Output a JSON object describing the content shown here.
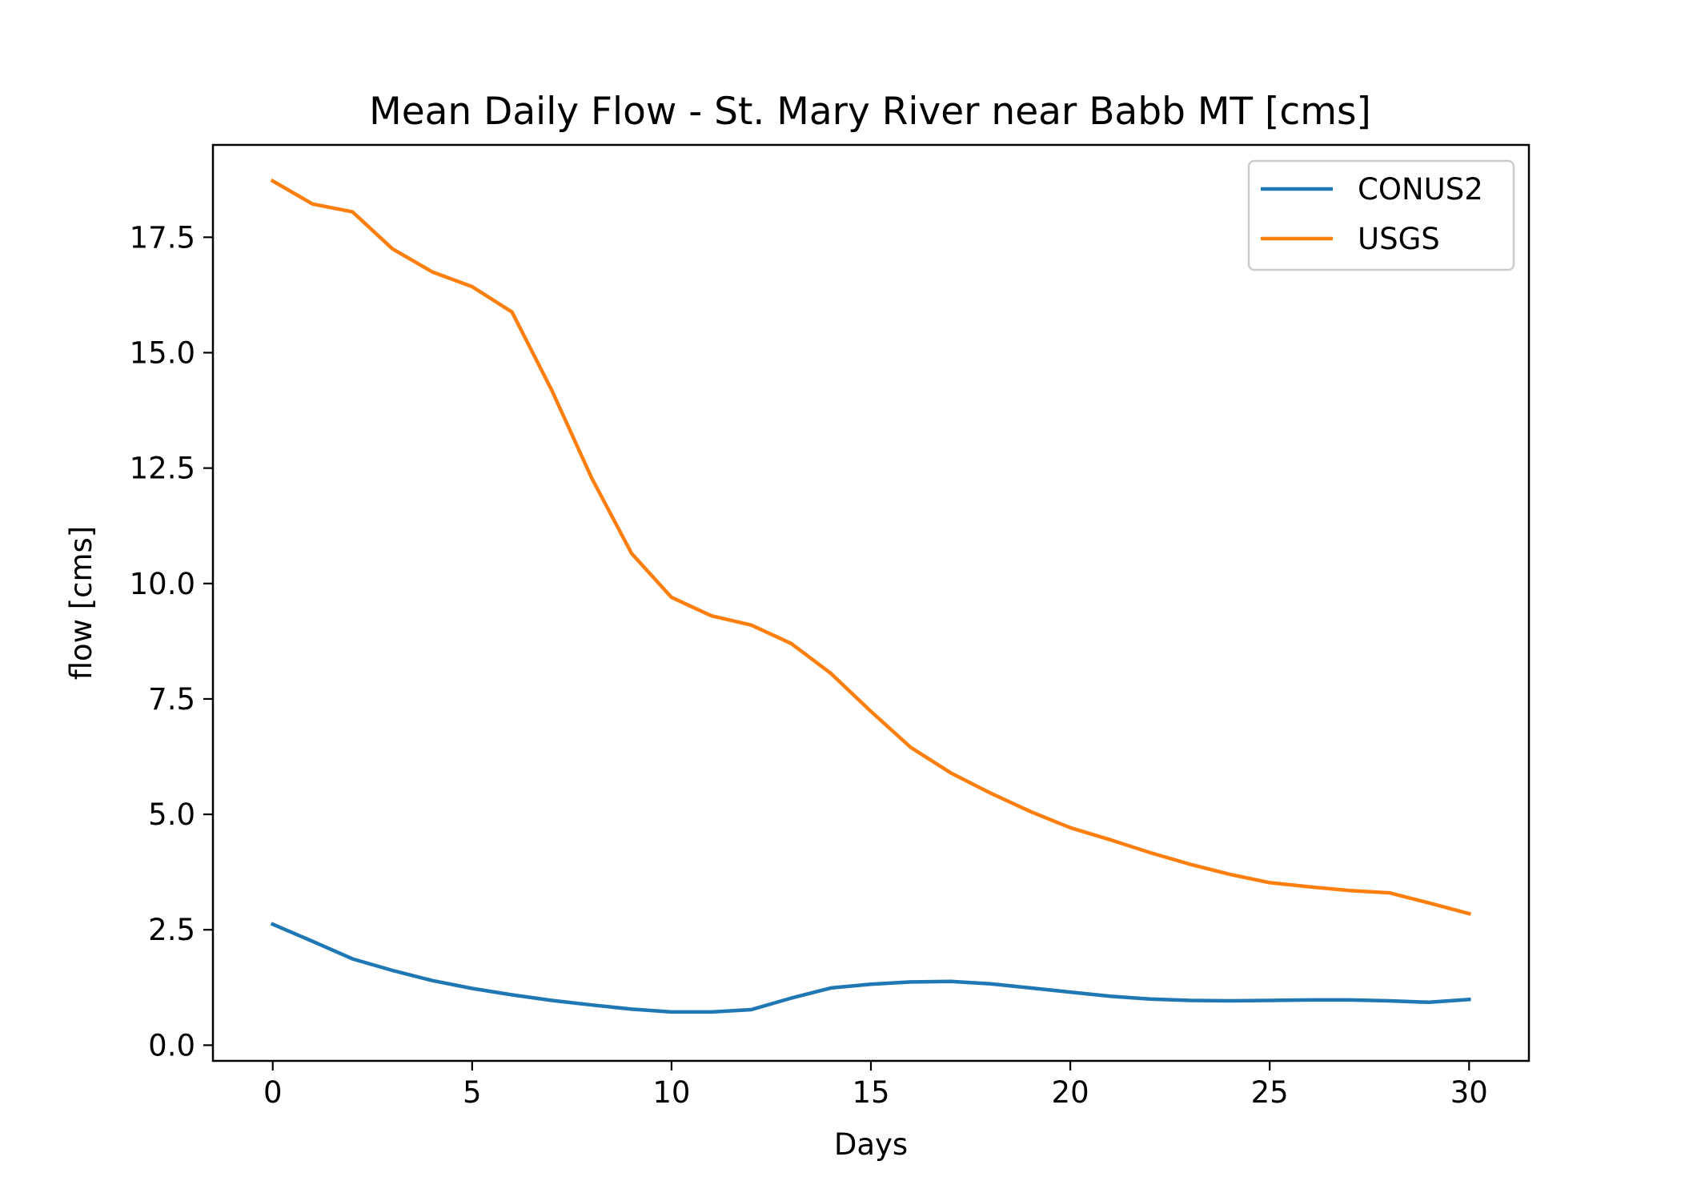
{
  "chart_data": {
    "type": "line",
    "title": "Mean Daily Flow - St. Mary River near Babb MT [cms]",
    "xlabel": "Days",
    "ylabel": "flow [cms]",
    "xlim": [
      -1.5,
      31.5
    ],
    "ylim": [
      -0.34,
      19.5
    ],
    "xticks": [
      0,
      5,
      10,
      15,
      20,
      25,
      30
    ],
    "yticks": [
      0.0,
      2.5,
      5.0,
      7.5,
      10.0,
      12.5,
      15.0,
      17.5
    ],
    "xtick_labels": [
      "0",
      "5",
      "10",
      "15",
      "20",
      "25",
      "30"
    ],
    "ytick_labels": [
      "0.0",
      "2.5",
      "5.0",
      "7.5",
      "10.0",
      "12.5",
      "15.0",
      "17.5"
    ],
    "grid": false,
    "legend_position": "top-right",
    "x": [
      0,
      1,
      2,
      3,
      4,
      5,
      6,
      7,
      8,
      9,
      10,
      11,
      12,
      13,
      14,
      15,
      16,
      17,
      18,
      19,
      20,
      21,
      22,
      23,
      24,
      25,
      26,
      27,
      28,
      29,
      30
    ],
    "series": [
      {
        "name": "CONUS2",
        "color": "#1f77b4",
        "values": [
          2.62,
          2.25,
          1.87,
          1.62,
          1.4,
          1.23,
          1.09,
          0.97,
          0.87,
          0.78,
          0.72,
          0.72,
          0.77,
          1.02,
          1.24,
          1.32,
          1.37,
          1.38,
          1.33,
          1.24,
          1.15,
          1.06,
          1.0,
          0.97,
          0.96,
          0.97,
          0.98,
          0.98,
          0.96,
          0.93,
          0.99
        ]
      },
      {
        "name": "USGS",
        "color": "#ff7f0e",
        "values": [
          18.72,
          18.22,
          18.05,
          17.25,
          16.75,
          16.43,
          15.88,
          14.18,
          12.28,
          10.65,
          9.7,
          9.3,
          9.1,
          8.7,
          8.05,
          7.23,
          6.45,
          5.9,
          5.46,
          5.06,
          4.71,
          4.45,
          4.17,
          3.92,
          3.7,
          3.52,
          3.43,
          3.35,
          3.3,
          3.08,
          2.85
        ]
      }
    ]
  }
}
